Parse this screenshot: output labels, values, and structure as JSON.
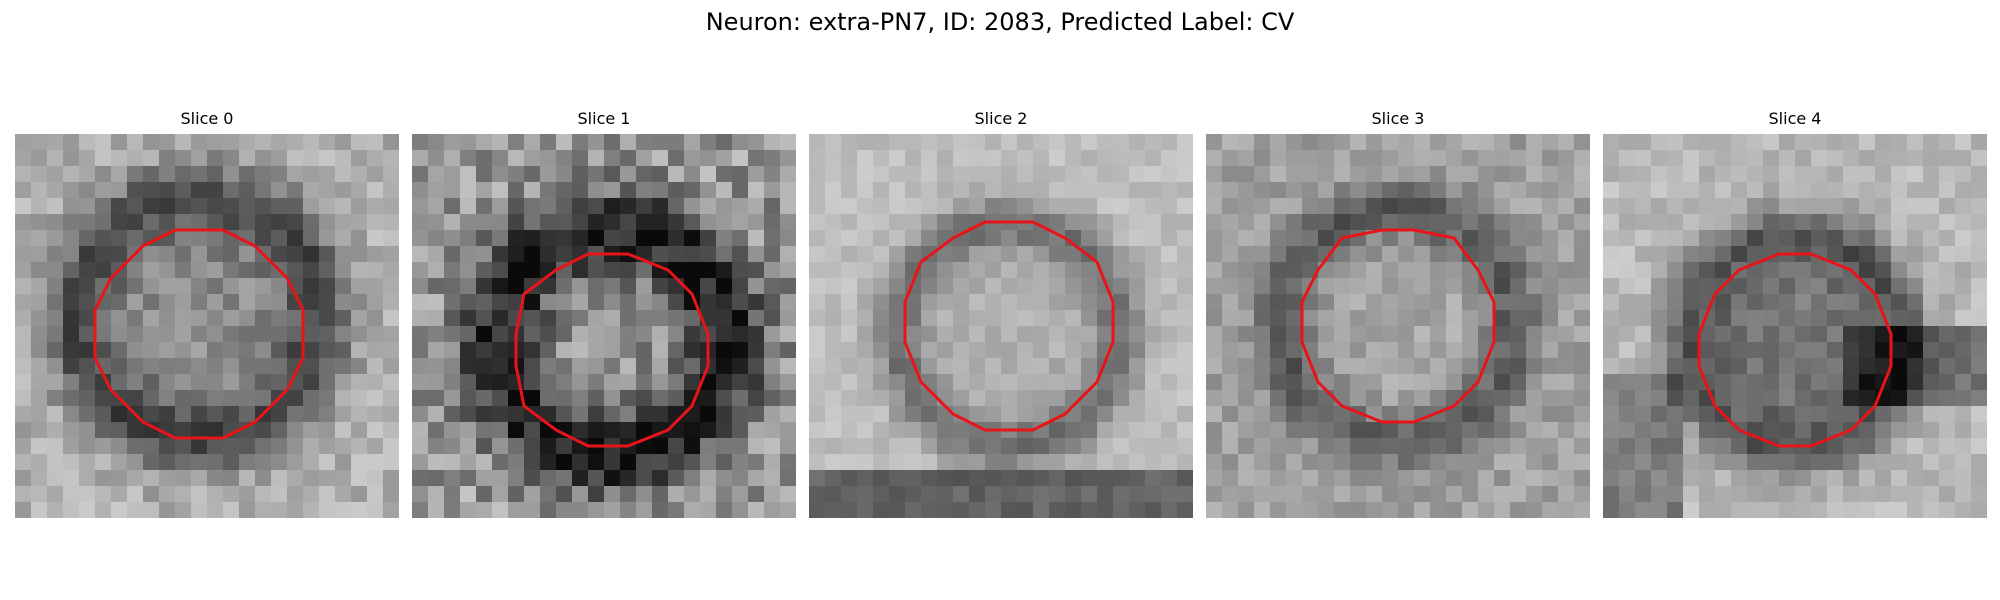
{
  "figure": {
    "title": "Neuron: extra-PN7, ID: 2083, Predicted Label: CV",
    "contour_color": "#e8141a"
  },
  "panels": [
    {
      "title": "Slice 0",
      "background": "light-speckle",
      "ring": "dark-halo"
    },
    {
      "title": "Slice 1",
      "background": "noisy",
      "ring": "faint"
    },
    {
      "title": "Slice 2",
      "background": "light-smooth",
      "ring": "dark-band"
    },
    {
      "title": "Slice 3",
      "background": "medium",
      "ring": "dark-band"
    },
    {
      "title": "Slice 4",
      "background": "light-with-dark-stripe",
      "ring": "medium"
    }
  ]
}
